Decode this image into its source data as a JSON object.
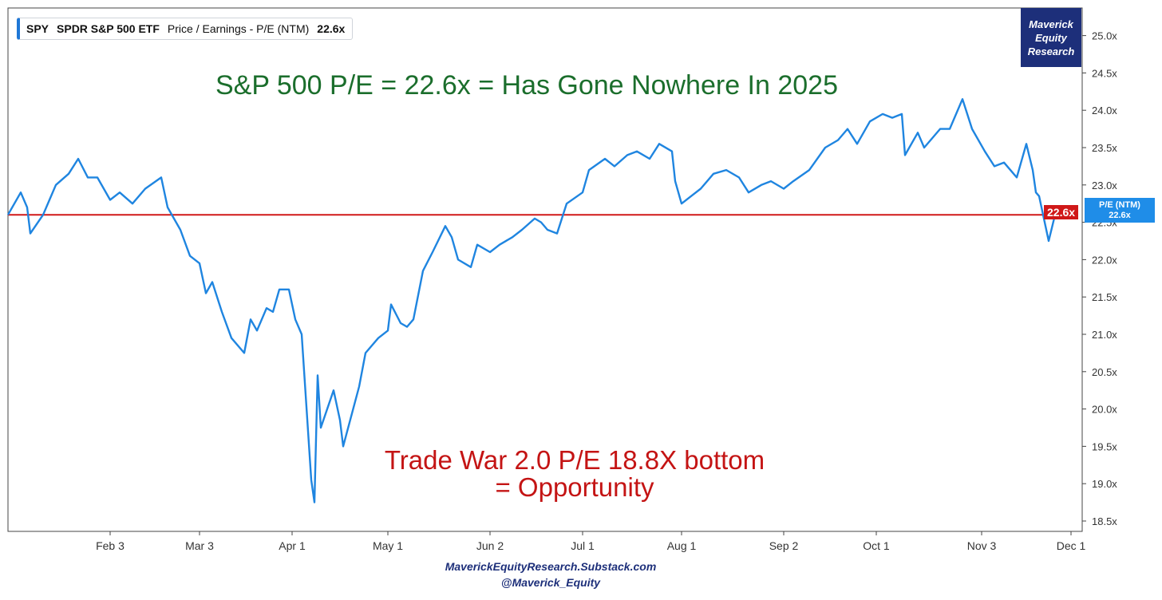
{
  "legend": {
    "ticker": "SPY",
    "fund_name": "SPDR S&P 500 ETF",
    "metric": "Price / Earnings - P/E (NTM)",
    "value": "22.6x",
    "accent_color": "#1f77d6"
  },
  "brand": {
    "line1": "Maverick",
    "line2": "Equity",
    "line3": "Research",
    "bg_color": "#1d2f7a"
  },
  "annotations": {
    "headline": "S&P 500 P/E = 22.6x = Has Gone Nowhere In 2025",
    "headline_color": "#1b6e2c",
    "note_line1": "Trade War 2.0 P/E 18.8X bottom",
    "note_line2": "= Opportunity",
    "note_color": "#c41414"
  },
  "tags": {
    "reference_label": "22.6x",
    "current_series": "P/E (NTM)",
    "current_value": "22.6x"
  },
  "footer": {
    "site": "MaverickEquityResearch.Substack.com",
    "handle": "@Maverick_Equity"
  },
  "chart_data": {
    "type": "line",
    "y_axis_side": "right",
    "ylim": [
      18.3,
      25.4
    ],
    "y_ticks": [
      18.5,
      19.0,
      19.5,
      20.0,
      20.5,
      21.0,
      21.5,
      22.0,
      22.5,
      23.0,
      23.5,
      24.0,
      24.5,
      25.0
    ],
    "y_tick_labels": [
      "18.5x",
      "19.0x",
      "19.5x",
      "20.0x",
      "20.5x",
      "21.0x",
      "21.5x",
      "22.0x",
      "22.5x",
      "23.0x",
      "23.5x",
      "24.0x",
      "24.5x",
      "25.0x"
    ],
    "x_range": [
      "2025-01-02",
      "2025-12-01"
    ],
    "x_ticks": [
      "2025-02-03",
      "2025-03-03",
      "2025-04-01",
      "2025-05-01",
      "2025-06-02",
      "2025-07-01",
      "2025-08-01",
      "2025-09-02",
      "2025-10-01",
      "2025-11-03",
      "2025-12-01"
    ],
    "x_tick_labels": [
      "Feb 3",
      "Mar 3",
      "Apr 1",
      "May 1",
      "Jun 2",
      "Jul 1",
      "Aug 1",
      "Sep 2",
      "Oct 1",
      "Nov 3",
      "Dec 1"
    ],
    "reference_line": {
      "value": 22.6,
      "color": "#d01818"
    },
    "grid": false,
    "series": [
      {
        "color": "#1f85e0",
        "points": [
          [
            "2025-01-02",
            22.6
          ],
          [
            "2025-01-06",
            22.9
          ],
          [
            "2025-01-08",
            22.7
          ],
          [
            "2025-01-09",
            22.35
          ],
          [
            "2025-01-13",
            22.6
          ],
          [
            "2025-01-15",
            22.8
          ],
          [
            "2025-01-17",
            23.0
          ],
          [
            "2025-01-21",
            23.15
          ],
          [
            "2025-01-24",
            23.35
          ],
          [
            "2025-01-27",
            23.1
          ],
          [
            "2025-01-30",
            23.1
          ],
          [
            "2025-02-03",
            22.8
          ],
          [
            "2025-02-06",
            22.9
          ],
          [
            "2025-02-10",
            22.75
          ],
          [
            "2025-02-14",
            22.95
          ],
          [
            "2025-02-19",
            23.1
          ],
          [
            "2025-02-21",
            22.7
          ],
          [
            "2025-02-25",
            22.4
          ],
          [
            "2025-02-28",
            22.05
          ],
          [
            "2025-03-03",
            21.95
          ],
          [
            "2025-03-05",
            21.55
          ],
          [
            "2025-03-07",
            21.7
          ],
          [
            "2025-03-10",
            21.3
          ],
          [
            "2025-03-13",
            20.95
          ],
          [
            "2025-03-17",
            20.75
          ],
          [
            "2025-03-19",
            21.2
          ],
          [
            "2025-03-21",
            21.05
          ],
          [
            "2025-03-24",
            21.35
          ],
          [
            "2025-03-26",
            21.3
          ],
          [
            "2025-03-28",
            21.6
          ],
          [
            "2025-03-31",
            21.6
          ],
          [
            "2025-04-02",
            21.2
          ],
          [
            "2025-04-04",
            21.0
          ],
          [
            "2025-04-07",
            19.05
          ],
          [
            "2025-04-08",
            18.75
          ],
          [
            "2025-04-09",
            20.45
          ],
          [
            "2025-04-10",
            19.75
          ],
          [
            "2025-04-14",
            20.25
          ],
          [
            "2025-04-16",
            19.85
          ],
          [
            "2025-04-17",
            19.5
          ],
          [
            "2025-04-22",
            20.3
          ],
          [
            "2025-04-24",
            20.75
          ],
          [
            "2025-04-28",
            20.95
          ],
          [
            "2025-05-01",
            21.05
          ],
          [
            "2025-05-02",
            21.4
          ],
          [
            "2025-05-05",
            21.15
          ],
          [
            "2025-05-07",
            21.1
          ],
          [
            "2025-05-09",
            21.2
          ],
          [
            "2025-05-12",
            21.85
          ],
          [
            "2025-05-15",
            22.1
          ],
          [
            "2025-05-19",
            22.45
          ],
          [
            "2025-05-21",
            22.3
          ],
          [
            "2025-05-23",
            22.0
          ],
          [
            "2025-05-27",
            21.9
          ],
          [
            "2025-05-29",
            22.2
          ],
          [
            "2025-06-02",
            22.1
          ],
          [
            "2025-06-05",
            22.2
          ],
          [
            "2025-06-09",
            22.3
          ],
          [
            "2025-06-12",
            22.4
          ],
          [
            "2025-06-16",
            22.55
          ],
          [
            "2025-06-18",
            22.5
          ],
          [
            "2025-06-20",
            22.4
          ],
          [
            "2025-06-23",
            22.35
          ],
          [
            "2025-06-26",
            22.75
          ],
          [
            "2025-07-01",
            22.9
          ],
          [
            "2025-07-03",
            23.2
          ],
          [
            "2025-07-08",
            23.35
          ],
          [
            "2025-07-11",
            23.25
          ],
          [
            "2025-07-15",
            23.4
          ],
          [
            "2025-07-18",
            23.45
          ],
          [
            "2025-07-22",
            23.35
          ],
          [
            "2025-07-25",
            23.55
          ],
          [
            "2025-07-29",
            23.45
          ],
          [
            "2025-07-30",
            23.05
          ],
          [
            "2025-08-01",
            22.75
          ],
          [
            "2025-08-04",
            22.85
          ],
          [
            "2025-08-07",
            22.95
          ],
          [
            "2025-08-11",
            23.15
          ],
          [
            "2025-08-15",
            23.2
          ],
          [
            "2025-08-19",
            23.1
          ],
          [
            "2025-08-22",
            22.9
          ],
          [
            "2025-08-26",
            23.0
          ],
          [
            "2025-08-29",
            23.05
          ],
          [
            "2025-09-02",
            22.95
          ],
          [
            "2025-09-05",
            23.05
          ],
          [
            "2025-09-10",
            23.2
          ],
          [
            "2025-09-15",
            23.5
          ],
          [
            "2025-09-19",
            23.6
          ],
          [
            "2025-09-22",
            23.75
          ],
          [
            "2025-09-25",
            23.55
          ],
          [
            "2025-09-29",
            23.85
          ],
          [
            "2025-10-03",
            23.95
          ],
          [
            "2025-10-06",
            23.9
          ],
          [
            "2025-10-09",
            23.95
          ],
          [
            "2025-10-10",
            23.4
          ],
          [
            "2025-10-14",
            23.7
          ],
          [
            "2025-10-16",
            23.5
          ],
          [
            "2025-10-21",
            23.75
          ],
          [
            "2025-10-24",
            23.75
          ],
          [
            "2025-10-28",
            24.15
          ],
          [
            "2025-10-31",
            23.75
          ],
          [
            "2025-11-04",
            23.45
          ],
          [
            "2025-11-07",
            23.25
          ],
          [
            "2025-11-10",
            23.3
          ],
          [
            "2025-11-14",
            23.1
          ],
          [
            "2025-11-17",
            23.55
          ],
          [
            "2025-11-19",
            23.2
          ],
          [
            "2025-11-20",
            22.9
          ],
          [
            "2025-11-21",
            22.85
          ],
          [
            "2025-11-24",
            22.25
          ],
          [
            "2025-11-26",
            22.6
          ]
        ]
      }
    ]
  }
}
